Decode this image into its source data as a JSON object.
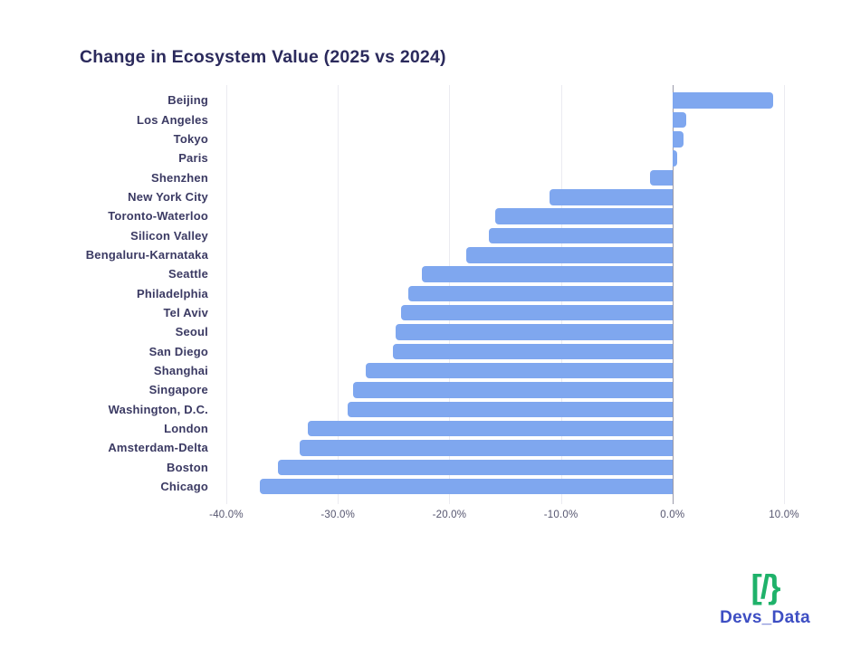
{
  "chart_data": {
    "type": "bar",
    "orientation": "horizontal",
    "title": "Change in Ecosystem Value (2025 vs 2024)",
    "categories": [
      "Beijing",
      "Los Angeles",
      "Tokyo",
      "Paris",
      "Shenzhen",
      "New York City",
      "Toronto-Waterloo",
      "Silicon Valley",
      "Bengaluru-Karnataka",
      "Seattle",
      "Philadelphia",
      "Tel Aviv",
      "Seoul",
      "San Diego",
      "Shanghai",
      "Singapore",
      "Washington, D.C.",
      "London",
      "Amsterdam-Delta",
      "Boston",
      "Chicago"
    ],
    "values": [
      9.0,
      1.2,
      1.0,
      0.4,
      -2.0,
      -11.0,
      -15.9,
      -16.5,
      -18.5,
      -22.5,
      -23.7,
      -24.3,
      -24.8,
      -25.1,
      -27.5,
      -28.6,
      -29.1,
      -32.7,
      -33.4,
      -35.4,
      -37.0
    ],
    "value_unit": "percent",
    "xlim": [
      -40,
      10
    ],
    "x_tick_values": [
      -40,
      -30,
      -20,
      -10,
      0,
      10
    ],
    "x_tick_labels": [
      "-40.0%",
      "-30.0%",
      "-20.0%",
      "-10.0%",
      "0.0%",
      "10.0%"
    ],
    "grid": true,
    "legend": "none",
    "bar_color": "#7fa7ef",
    "gridline_color": "#ebebf1",
    "zeroline_color": "#9a9aaa",
    "title_color": "#2b2a5c",
    "category_label_color": "#3b3a63",
    "tick_label_color": "#55556f"
  },
  "branding": {
    "icon_glyph": "[/}",
    "name": "Devs_Data",
    "icon_color": "#1fb26a",
    "text_color": "#3d4ec3"
  }
}
